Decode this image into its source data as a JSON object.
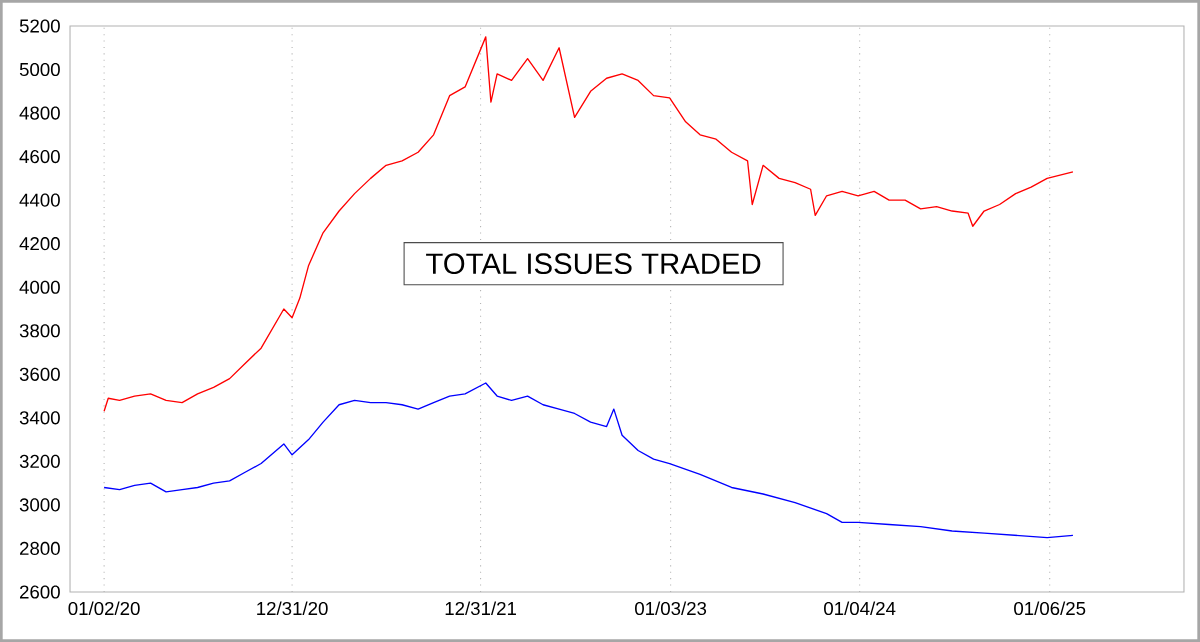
{
  "chart_data": {
    "type": "line",
    "title": "TOTAL ISSUES TRADED",
    "xlim": [
      "2019-10-28",
      "2025-09-23"
    ],
    "ylim": [
      2600,
      5200
    ],
    "xticks": [
      {
        "value": "2020-01-02",
        "label": "01/02/20"
      },
      {
        "value": "2020-12-31",
        "label": "12/31/20"
      },
      {
        "value": "2021-12-31",
        "label": "12/31/21"
      },
      {
        "value": "2023-01-03",
        "label": "01/03/23"
      },
      {
        "value": "2024-01-04",
        "label": "01/04/24"
      },
      {
        "value": "2025-01-06",
        "label": "01/06/25"
      }
    ],
    "yticks": [
      2600,
      2800,
      3000,
      3200,
      3400,
      3600,
      3800,
      4000,
      4200,
      4400,
      4600,
      4800,
      5000,
      5200
    ],
    "grid": "x",
    "marker": "none",
    "line_style": "solid",
    "series": [
      {
        "color": "#ff0000",
        "x": [
          "2020-01-02",
          "2020-01-10",
          "2020-02-01",
          "2020-03-01",
          "2020-04-01",
          "2020-05-01",
          "2020-06-01",
          "2020-07-01",
          "2020-08-01",
          "2020-09-01",
          "2020-10-01",
          "2020-11-01",
          "2020-12-15",
          "2020-12-31",
          "2021-01-15",
          "2021-02-01",
          "2021-03-01",
          "2021-04-01",
          "2021-05-01",
          "2021-06-01",
          "2021-07-01",
          "2021-08-01",
          "2021-09-01",
          "2021-10-01",
          "2021-11-01",
          "2021-12-01",
          "2022-01-10",
          "2022-01-20",
          "2022-02-01",
          "2022-03-01",
          "2022-04-01",
          "2022-05-01",
          "2022-06-01",
          "2022-07-01",
          "2022-08-01",
          "2022-09-01",
          "2022-10-01",
          "2022-11-01",
          "2022-12-01",
          "2023-01-01",
          "2023-02-01",
          "2023-03-01",
          "2023-04-01",
          "2023-05-01",
          "2023-06-01",
          "2023-06-10",
          "2023-07-01",
          "2023-08-01",
          "2023-09-01",
          "2023-10-01",
          "2023-10-10",
          "2023-11-01",
          "2023-12-01",
          "2024-01-01",
          "2024-02-01",
          "2024-03-01",
          "2024-04-01",
          "2024-05-01",
          "2024-06-01",
          "2024-07-01",
          "2024-08-01",
          "2024-08-10",
          "2024-09-01",
          "2024-10-01",
          "2024-11-01",
          "2024-12-01",
          "2025-01-01",
          "2025-02-20"
        ],
        "values": [
          3430,
          3490,
          3480,
          3500,
          3510,
          3480,
          3470,
          3510,
          3540,
          3580,
          3650,
          3720,
          3900,
          3860,
          3950,
          4100,
          4250,
          4350,
          4430,
          4500,
          4560,
          4580,
          4620,
          4700,
          4880,
          4920,
          5150,
          4850,
          4980,
          4950,
          5050,
          4950,
          5100,
          4780,
          4900,
          4960,
          4980,
          4950,
          4880,
          4870,
          4760,
          4700,
          4680,
          4620,
          4580,
          4380,
          4560,
          4500,
          4480,
          4450,
          4330,
          4420,
          4440,
          4420,
          4440,
          4400,
          4400,
          4360,
          4370,
          4350,
          4340,
          4280,
          4350,
          4380,
          4430,
          4460,
          4500,
          4530
        ]
      },
      {
        "color": "#0000ff",
        "x": [
          "2020-01-02",
          "2020-02-01",
          "2020-03-01",
          "2020-04-01",
          "2020-05-01",
          "2020-06-01",
          "2020-07-01",
          "2020-08-01",
          "2020-09-01",
          "2020-10-01",
          "2020-11-01",
          "2020-12-15",
          "2020-12-31",
          "2021-02-01",
          "2021-03-01",
          "2021-04-01",
          "2021-05-01",
          "2021-06-01",
          "2021-07-01",
          "2021-08-01",
          "2021-09-01",
          "2021-10-01",
          "2021-11-01",
          "2021-12-01",
          "2022-01-10",
          "2022-02-01",
          "2022-03-01",
          "2022-04-01",
          "2022-05-01",
          "2022-06-01",
          "2022-07-01",
          "2022-08-01",
          "2022-09-01",
          "2022-09-15",
          "2022-10-01",
          "2022-11-01",
          "2022-12-01",
          "2023-01-01",
          "2023-03-01",
          "2023-05-01",
          "2023-07-01",
          "2023-09-01",
          "2023-11-01",
          "2023-12-01",
          "2024-01-01",
          "2024-03-01",
          "2024-05-01",
          "2024-07-01",
          "2024-09-01",
          "2024-11-01",
          "2025-01-01",
          "2025-02-20"
        ],
        "values": [
          3080,
          3070,
          3090,
          3100,
          3060,
          3070,
          3080,
          3100,
          3110,
          3150,
          3190,
          3280,
          3230,
          3300,
          3380,
          3460,
          3480,
          3470,
          3470,
          3460,
          3440,
          3470,
          3500,
          3510,
          3560,
          3500,
          3480,
          3500,
          3460,
          3440,
          3420,
          3380,
          3360,
          3440,
          3320,
          3250,
          3210,
          3190,
          3140,
          3080,
          3050,
          3010,
          2960,
          2920,
          2920,
          2910,
          2900,
          2880,
          2870,
          2860,
          2850,
          2860
        ]
      }
    ]
  }
}
